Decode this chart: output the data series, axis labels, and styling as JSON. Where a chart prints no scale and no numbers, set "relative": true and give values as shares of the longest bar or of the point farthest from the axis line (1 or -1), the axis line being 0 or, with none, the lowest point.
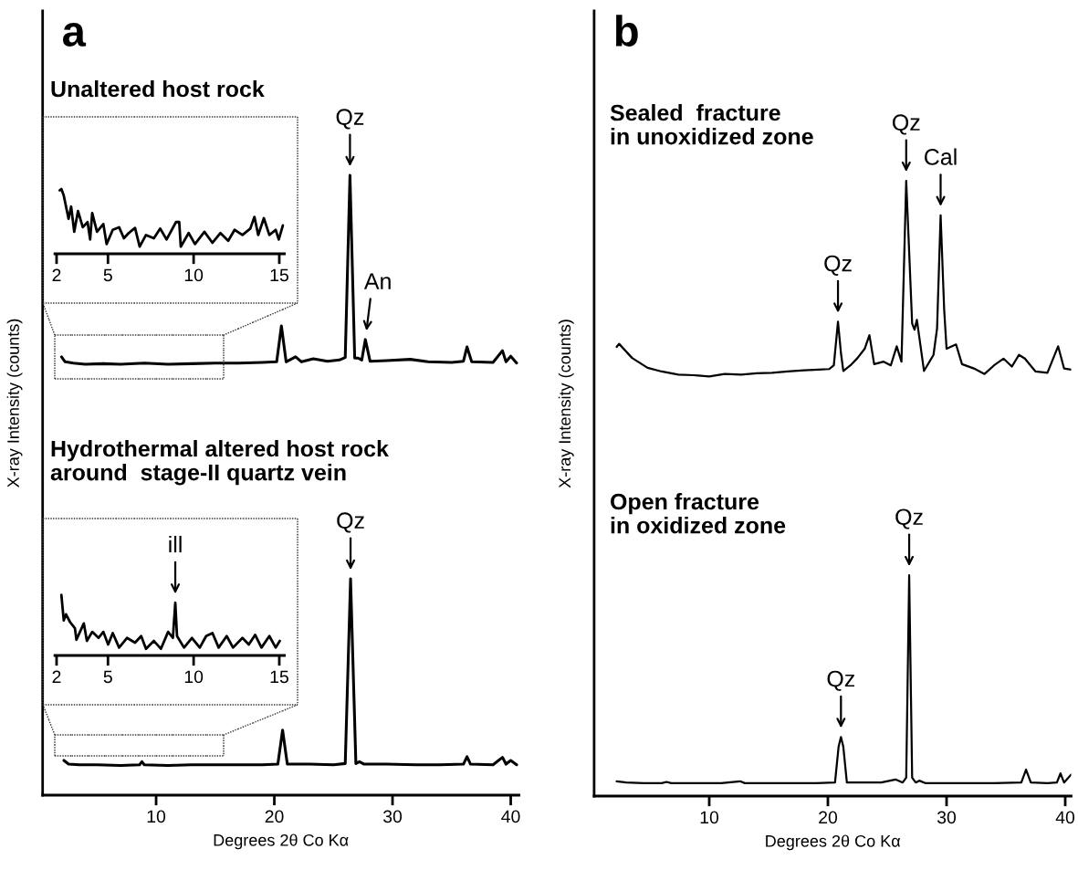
{
  "chart_data": [
    {
      "type": "line",
      "title": "a",
      "xlabel": "Degrees 2θ Co Kα",
      "ylabel": "X-ray Intensity (counts)",
      "relative": true,
      "xlim": [
        0.4,
        40.7
      ],
      "xticks": [
        10,
        20,
        30,
        40
      ],
      "grid": false,
      "series": [
        {
          "color": "#000000",
          "x": [
            2.0,
            2.3,
            3.0,
            4.0,
            5.5,
            7.0,
            9.0,
            11.0,
            13.0,
            15.0,
            17.0,
            19.0,
            20.2,
            20.6,
            21.0,
            21.8,
            22.3,
            23.3,
            24.5,
            25.5,
            26.0,
            26.4,
            26.8,
            27.1,
            27.4,
            27.7,
            28.1,
            29.5,
            31.5,
            33.0,
            35.0,
            36.0,
            36.3,
            36.7,
            38.5,
            39.3,
            39.6,
            40.0,
            40.5
          ],
          "values": [
            0.707,
            0.699,
            0.697,
            0.695,
            0.696,
            0.695,
            0.697,
            0.695,
            0.696,
            0.697,
            0.697,
            0.698,
            0.699,
            0.757,
            0.699,
            0.707,
            0.699,
            0.704,
            0.7,
            0.702,
            0.706,
            1.0,
            0.705,
            0.705,
            0.702,
            0.735,
            0.7,
            0.701,
            0.703,
            0.699,
            0.698,
            0.7,
            0.723,
            0.699,
            0.698,
            0.717,
            0.699,
            0.708,
            0.697
          ]
        },
        {
          "color": "#000000",
          "x": [
            2.2,
            2.6,
            3.5,
            5.0,
            7.0,
            8.6,
            8.8,
            9.0,
            11.0,
            13.0,
            15.0,
            17.0,
            19.0,
            20.3,
            20.7,
            21.1,
            23.0,
            25.0,
            26.0,
            26.45,
            26.9,
            27.2,
            27.6,
            29.5,
            32.0,
            34.0,
            36.0,
            36.3,
            36.6,
            38.5,
            39.3,
            39.6,
            40.0,
            40.5
          ],
          "values": [
            0.056,
            0.05,
            0.049,
            0.049,
            0.048,
            0.049,
            0.054,
            0.049,
            0.048,
            0.049,
            0.049,
            0.049,
            0.049,
            0.05,
            0.105,
            0.05,
            0.05,
            0.049,
            0.051,
            0.349,
            0.051,
            0.054,
            0.05,
            0.05,
            0.049,
            0.049,
            0.05,
            0.062,
            0.05,
            0.049,
            0.061,
            0.05,
            0.056,
            0.049
          ]
        }
      ],
      "annotations": [
        "Unaltered host rock",
        "Hydrothermal altered host rock\naround  stage-II quartz vein",
        {
          "text": "Qz",
          "x": 26.4,
          "y": 1.0
        },
        {
          "text": "An",
          "x": 27.7,
          "y": 0.735
        },
        {
          "text": "Qz",
          "x": 26.45,
          "y": 0.349
        }
      ]
    },
    {
      "type": "line",
      "relative": true,
      "xlim": [
        1.9,
        15.3
      ],
      "xticks": [
        2,
        5,
        10,
        15
      ],
      "grid": false,
      "series": [
        {
          "color": "#000000",
          "x": [
            2.18,
            2.28,
            2.42,
            2.7,
            2.85,
            3.03,
            3.25,
            3.53,
            3.81,
            3.96,
            4.08,
            4.36,
            4.73,
            4.92,
            5.28,
            5.65,
            5.93,
            6.21,
            6.58,
            6.85,
            7.22,
            7.68,
            8.05,
            8.42,
            8.97,
            9.16,
            9.25,
            9.71,
            10.08,
            10.63,
            11.1,
            11.56,
            12.02,
            12.39,
            12.85,
            13.31,
            13.55,
            13.77,
            14.1,
            14.42,
            14.79,
            14.97,
            15.21
          ],
          "values": [
            0.98,
            1.0,
            0.9,
            0.54,
            0.73,
            0.34,
            0.66,
            0.41,
            0.49,
            0.22,
            0.63,
            0.34,
            0.46,
            0.15,
            0.37,
            0.41,
            0.24,
            0.32,
            0.4,
            0.11,
            0.29,
            0.24,
            0.39,
            0.22,
            0.49,
            0.49,
            0.11,
            0.32,
            0.15,
            0.34,
            0.17,
            0.32,
            0.2,
            0.37,
            0.29,
            0.39,
            0.57,
            0.29,
            0.55,
            0.29,
            0.37,
            0.22,
            0.44
          ]
        }
      ]
    },
    {
      "type": "line",
      "relative": true,
      "xlim": [
        1.9,
        15.3
      ],
      "xticks": [
        2,
        5,
        10,
        15
      ],
      "grid": false,
      "series": [
        {
          "color": "#000000",
          "x": [
            2.28,
            2.42,
            2.55,
            2.79,
            3.07,
            3.16,
            3.59,
            3.77,
            4.08,
            4.45,
            4.73,
            5.01,
            5.28,
            5.65,
            6.11,
            6.58,
            6.94,
            7.22,
            7.68,
            8.09,
            8.51,
            8.79,
            8.93,
            9.03,
            9.44,
            9.9,
            10.36,
            10.73,
            11.1,
            11.46,
            11.93,
            12.3,
            12.85,
            13.22,
            13.59,
            13.96,
            14.42,
            14.79,
            15.03
          ],
          "values": [
            1.0,
            0.58,
            0.68,
            0.55,
            0.45,
            0.26,
            0.53,
            0.24,
            0.39,
            0.29,
            0.39,
            0.18,
            0.37,
            0.13,
            0.29,
            0.21,
            0.32,
            0.11,
            0.24,
            0.11,
            0.39,
            0.29,
            0.87,
            0.32,
            0.13,
            0.29,
            0.13,
            0.32,
            0.37,
            0.13,
            0.32,
            0.13,
            0.29,
            0.18,
            0.34,
            0.13,
            0.32,
            0.13,
            0.24
          ]
        }
      ],
      "annotations": [
        {
          "text": "ill",
          "x": 8.93,
          "y": 0.87
        }
      ]
    },
    {
      "type": "line",
      "title": "b",
      "xlabel": "Degrees 2θ Co Kα",
      "ylabel": "X-ray Intensity (counts)",
      "relative": true,
      "xlim": [
        0.3,
        40.5
      ],
      "xticks": [
        10,
        20,
        30,
        40
      ],
      "grid": false,
      "series": [
        {
          "color": "#000000",
          "x": [
            2.2,
            2.4,
            3.5,
            4.8,
            6.0,
            7.4,
            8.7,
            10.0,
            11.3,
            12.7,
            14.0,
            15.3,
            16.6,
            18.0,
            19.2,
            20.1,
            20.5,
            20.85,
            21.1,
            21.3,
            21.9,
            22.5,
            23.1,
            23.5,
            23.9,
            24.7,
            25.3,
            25.8,
            26.2,
            26.6,
            27.1,
            27.3,
            27.5,
            28.1,
            28.9,
            29.2,
            29.5,
            29.8,
            30.0,
            30.8,
            31.3,
            32.3,
            33.2,
            34.0,
            34.8,
            35.5,
            36.1,
            36.6,
            37.5,
            38.5,
            39.4,
            39.9,
            40.5
          ],
          "values": [
            0.73,
            0.735,
            0.712,
            0.696,
            0.69,
            0.685,
            0.684,
            0.682,
            0.686,
            0.685,
            0.687,
            0.688,
            0.69,
            0.692,
            0.693,
            0.694,
            0.7,
            0.771,
            0.72,
            0.691,
            0.7,
            0.712,
            0.727,
            0.749,
            0.702,
            0.706,
            0.7,
            0.731,
            0.706,
            1.0,
            0.768,
            0.758,
            0.774,
            0.691,
            0.717,
            0.76,
            0.944,
            0.79,
            0.727,
            0.734,
            0.702,
            0.695,
            0.686,
            0.7,
            0.711,
            0.698,
            0.717,
            0.711,
            0.69,
            0.688,
            0.731,
            0.695,
            0.693
          ]
        },
        {
          "color": "#000000",
          "x": [
            2.2,
            3.0,
            4.5,
            6.0,
            6.4,
            6.8,
            9.0,
            11.0,
            12.6,
            13.0,
            15.0,
            17.0,
            19.0,
            20.6,
            20.9,
            21.1,
            21.3,
            21.6,
            23.0,
            24.5,
            25.7,
            26.3,
            26.6,
            26.85,
            27.1,
            27.4,
            27.7,
            28.2,
            30.0,
            32.0,
            34.0,
            36.3,
            36.7,
            37.1,
            38.5,
            39.3,
            39.6,
            39.9,
            40.5
          ],
          "values": [
            0.024,
            0.022,
            0.021,
            0.021,
            0.023,
            0.021,
            0.021,
            0.021,
            0.024,
            0.021,
            0.021,
            0.021,
            0.021,
            0.022,
            0.08,
            0.096,
            0.08,
            0.022,
            0.022,
            0.022,
            0.027,
            0.022,
            0.03,
            0.359,
            0.03,
            0.022,
            0.025,
            0.021,
            0.021,
            0.021,
            0.021,
            0.022,
            0.043,
            0.022,
            0.021,
            0.022,
            0.037,
            0.022,
            0.035
          ]
        }
      ],
      "annotations": [
        "Sealed  fracture\nin unoxidized zone",
        "Open fracture\nin oxidized zone",
        {
          "text": "Qz",
          "x": 20.85,
          "y": 0.771
        },
        {
          "text": "Qz",
          "x": 26.6,
          "y": 1.0
        },
        {
          "text": "Cal",
          "x": 29.5,
          "y": 0.944
        },
        {
          "text": "Qz",
          "x": 21.1,
          "y": 0.096
        },
        {
          "text": "Qz",
          "x": 26.85,
          "y": 0.359
        }
      ]
    }
  ]
}
